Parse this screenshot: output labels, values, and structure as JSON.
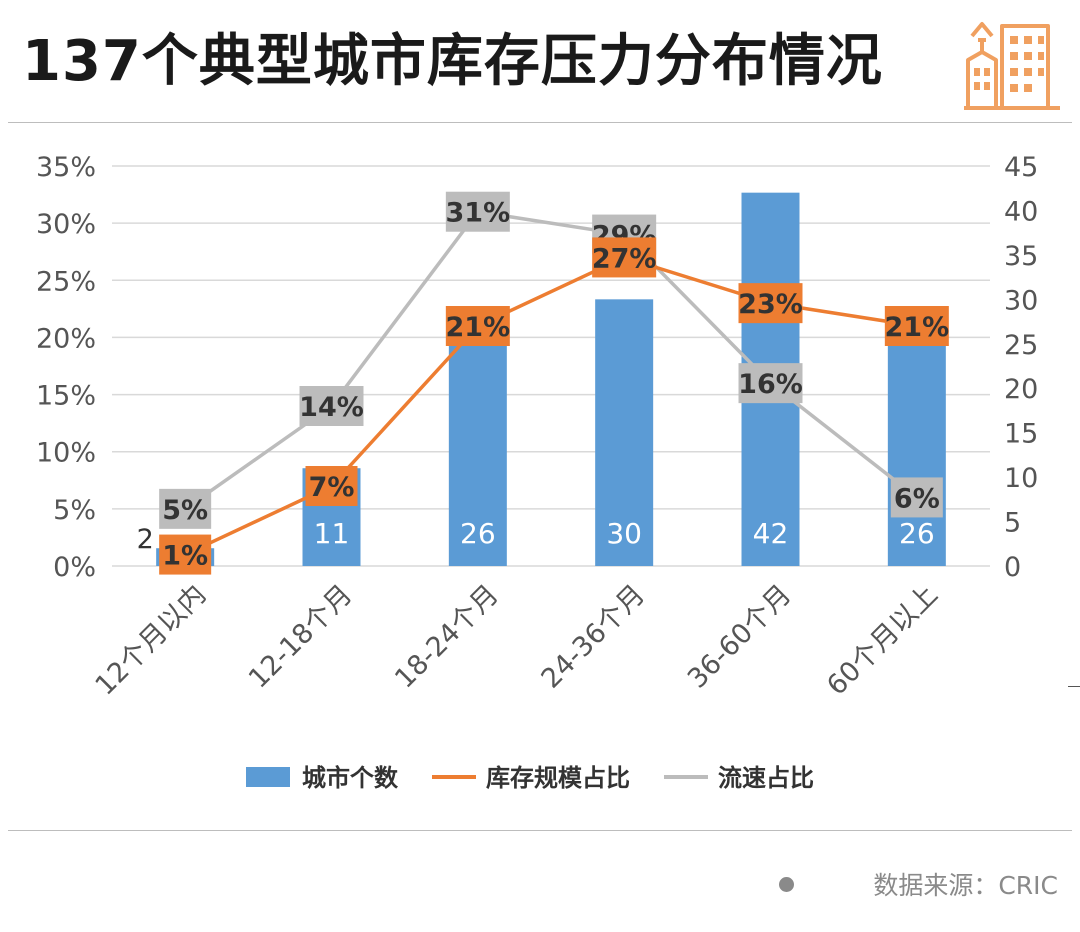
{
  "title": "137个典型城市库存压力分布情况",
  "source": "数据来源：CRIC",
  "colors": {
    "bar": "#5b9bd5",
    "stock": "#ed7d31",
    "speed": "#bcbcbc",
    "axis_text": "#555555",
    "grid": "#d9d9d9",
    "logo": "#f0a060"
  },
  "chart_data": {
    "type": "bar",
    "categories": [
      "12个月以内",
      "12-18个月",
      "18-24个月",
      "24-36个月",
      "36-60个月",
      "60个月以上"
    ],
    "series": [
      {
        "name": "城市个数",
        "type": "bar",
        "axis": "right",
        "values": [
          2,
          11,
          26,
          30,
          42,
          26
        ],
        "labels": [
          "2",
          "11",
          "26",
          "30",
          "42",
          "26"
        ]
      },
      {
        "name": "库存规模占比",
        "type": "line",
        "axis": "left",
        "values": [
          1,
          7,
          21,
          27,
          23,
          21
        ],
        "labels": [
          "1%",
          "7%",
          "21%",
          "27%",
          "23%",
          "21%"
        ]
      },
      {
        "name": "流速占比",
        "type": "line",
        "axis": "left",
        "values": [
          5,
          14,
          31,
          29,
          16,
          6
        ],
        "labels": [
          "5%",
          "14%",
          "31%",
          "29%",
          "16%",
          "6%"
        ]
      }
    ],
    "y_left": {
      "min": 0,
      "max": 35,
      "ticks": [
        "0%",
        "5%",
        "10%",
        "15%",
        "20%",
        "25%",
        "30%",
        "35%"
      ]
    },
    "y_right": {
      "min": 0,
      "max": 45,
      "ticks": [
        "0",
        "5",
        "10",
        "15",
        "20",
        "25",
        "30",
        "35",
        "40",
        "45"
      ]
    },
    "grid": true,
    "legend_position": "bottom"
  }
}
